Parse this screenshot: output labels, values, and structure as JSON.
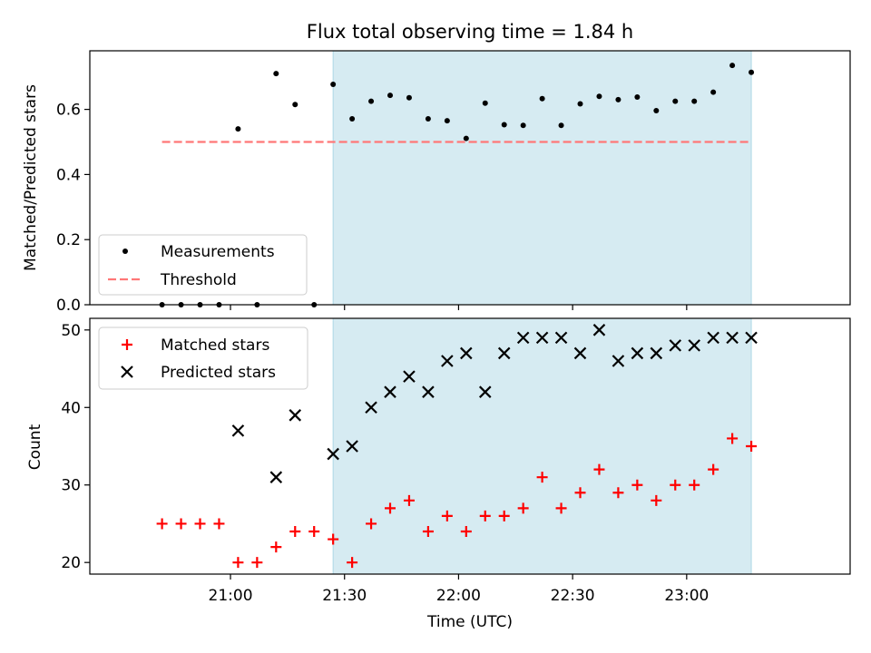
{
  "title": "Flux total observing time = 1.84 h",
  "colors": {
    "shade": "#add8e6",
    "threshold": "#ff7777",
    "matched": "#ff0000",
    "predicted": "#000000",
    "ratio_point": "#000000"
  },
  "chart_data": [
    {
      "type": "scatter",
      "panel": "top",
      "ylabel": "Matched/Predicted stars",
      "ylim": [
        0,
        0.78
      ],
      "yticks": [
        0.0,
        0.2,
        0.4,
        0.6
      ],
      "ytick_labels": [
        "0.0",
        "0.2",
        "0.4",
        "0.6"
      ],
      "xlim": [
        "20:23",
        "23:43"
      ],
      "shaded_interval": [
        "21:27",
        "23:17"
      ],
      "legend": "lower left",
      "series": [
        {
          "name": "Measurements",
          "marker": "dot",
          "x": [
            "20:42",
            "20:47",
            "20:52",
            "20:57",
            "21:02",
            "21:07",
            "21:12",
            "21:17",
            "21:22",
            "21:27",
            "21:32",
            "21:37",
            "21:42",
            "21:47",
            "21:52",
            "21:57",
            "22:02",
            "22:07",
            "22:12",
            "22:17",
            "22:22",
            "22:27",
            "22:32",
            "22:37",
            "22:42",
            "22:47",
            "22:52",
            "22:57",
            "23:02",
            "23:07",
            "23:12",
            "23:17"
          ],
          "y": [
            0.0,
            0.0,
            0.0,
            0.0,
            0.54,
            0.0,
            0.71,
            0.615,
            0.0,
            0.677,
            0.571,
            0.625,
            0.643,
            0.636,
            0.571,
            0.565,
            0.511,
            0.619,
            0.553,
            0.551,
            0.633,
            0.551,
            0.617,
            0.64,
            0.63,
            0.638,
            0.596,
            0.625,
            0.625,
            0.653,
            0.735,
            0.714
          ]
        },
        {
          "name": "Threshold",
          "style": "dashed",
          "x": [
            "20:42",
            "23:17"
          ],
          "y": [
            0.5,
            0.5
          ]
        }
      ]
    },
    {
      "type": "scatter",
      "panel": "bottom",
      "xlabel": "Time (UTC)",
      "ylabel": "Count",
      "ylim": [
        18.5,
        51.5
      ],
      "yticks": [
        20,
        30,
        40,
        50
      ],
      "ytick_labels": [
        "20",
        "30",
        "40",
        "50"
      ],
      "xlim": [
        "20:23",
        "23:43"
      ],
      "xticks": [
        "21:00",
        "21:30",
        "22:00",
        "22:30",
        "23:00"
      ],
      "xtick_labels": [
        "21:00",
        "21:30",
        "22:00",
        "22:30",
        "23:00"
      ],
      "shaded_interval": [
        "21:27",
        "23:17"
      ],
      "legend": "upper left",
      "series": [
        {
          "name": "Matched stars",
          "marker": "plus",
          "x": [
            "20:42",
            "20:47",
            "20:52",
            "20:57",
            "21:02",
            "21:07",
            "21:12",
            "21:17",
            "21:22",
            "21:27",
            "21:32",
            "21:37",
            "21:42",
            "21:47",
            "21:52",
            "21:57",
            "22:02",
            "22:07",
            "22:12",
            "22:17",
            "22:22",
            "22:27",
            "22:32",
            "22:37",
            "22:42",
            "22:47",
            "22:52",
            "22:57",
            "23:02",
            "23:07",
            "23:12",
            "23:17"
          ],
          "y": [
            25,
            25,
            25,
            25,
            20,
            20,
            22,
            24,
            24,
            23,
            20,
            25,
            27,
            28,
            24,
            26,
            24,
            26,
            26,
            27,
            31,
            27,
            29,
            32,
            29,
            30,
            28,
            30,
            30,
            32,
            36,
            35
          ]
        },
        {
          "name": "Predicted stars",
          "marker": "x",
          "x": [
            "21:02",
            "21:12",
            "21:17",
            "21:27",
            "21:32",
            "21:37",
            "21:42",
            "21:47",
            "21:52",
            "21:57",
            "22:02",
            "22:07",
            "22:12",
            "22:17",
            "22:22",
            "22:27",
            "22:32",
            "22:37",
            "22:42",
            "22:47",
            "22:52",
            "22:57",
            "23:02",
            "23:07",
            "23:12",
            "23:17"
          ],
          "y": [
            37,
            31,
            39,
            34,
            35,
            40,
            42,
            44,
            42,
            46,
            47,
            42,
            47,
            49,
            49,
            49,
            47,
            50,
            46,
            47,
            47,
            48,
            48,
            49,
            49,
            49
          ]
        }
      ]
    }
  ]
}
